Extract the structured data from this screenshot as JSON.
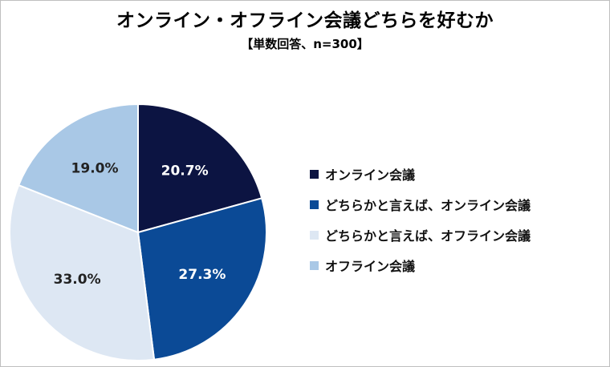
{
  "chart_data": {
    "type": "pie",
    "title": "オンライン・オフライン会議どちらを好むか",
    "subtitle": "【単数回答、n=300】",
    "legend_position": "right",
    "slices": [
      {
        "label": "オンライン会議",
        "value": 20.7,
        "value_label": "20.7%",
        "color": "#0c1442",
        "text_color": "#ffffff"
      },
      {
        "label": "どちらかと言えば、オンライン会議",
        "value": 27.3,
        "value_label": "27.3%",
        "color": "#0b4a96",
        "text_color": "#ffffff"
      },
      {
        "label": "どちらかと言えば、オフライン会議",
        "value": 33.0,
        "value_label": "33.0%",
        "color": "#dde7f3",
        "text_color": "#222222"
      },
      {
        "label": "オフライン会議",
        "value": 19.0,
        "value_label": "19.0%",
        "color": "#a9c8e6",
        "text_color": "#222222"
      }
    ]
  }
}
